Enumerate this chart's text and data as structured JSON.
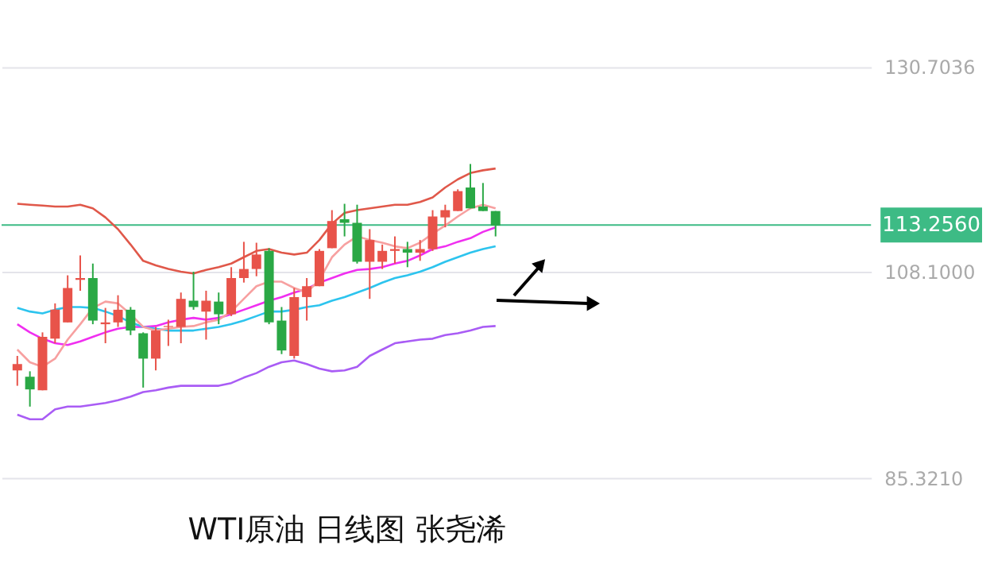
{
  "chart_data": {
    "type": "candlestick",
    "title": "WTI原油 日线图 张尧浠",
    "categories": [
      null,
      null,
      null,
      null,
      null,
      null,
      null,
      null,
      null,
      null,
      null,
      null,
      null,
      null,
      null,
      null,
      null,
      null,
      null,
      null,
      null,
      null,
      null,
      null,
      null,
      null,
      null,
      null,
      null,
      null,
      null,
      null,
      null,
      null,
      null,
      null,
      null,
      null,
      null
    ],
    "ohlc": [
      [
        97.2,
        98.8,
        95.5,
        97.9
      ],
      [
        96.5,
        97.1,
        93.2,
        95.1
      ],
      [
        95.0,
        101.4,
        95.0,
        100.9
      ],
      [
        100.7,
        104.6,
        100.2,
        103.9
      ],
      [
        102.5,
        107.7,
        102.5,
        106.3
      ],
      [
        107.2,
        109.9,
        106.0,
        107.4
      ],
      [
        107.4,
        109.0,
        102.3,
        102.7
      ],
      [
        102.3,
        104.1,
        100.2,
        102.5
      ],
      [
        102.5,
        105.5,
        102.0,
        103.9
      ],
      [
        103.9,
        104.2,
        101.1,
        101.6
      ],
      [
        101.3,
        101.4,
        95.3,
        98.5
      ],
      [
        98.5,
        102.0,
        97.2,
        101.6
      ],
      [
        102.0,
        102.8,
        99.9,
        102.1
      ],
      [
        102.0,
        105.8,
        100.2,
        105.1
      ],
      [
        104.9,
        108.1,
        103.9,
        104.2
      ],
      [
        103.7,
        106.0,
        100.6,
        104.9
      ],
      [
        104.8,
        105.8,
        102.3,
        103.4
      ],
      [
        103.4,
        108.6,
        103.2,
        107.4
      ],
      [
        107.4,
        111.4,
        106.9,
        108.4
      ],
      [
        108.4,
        111.3,
        107.6,
        110.0
      ],
      [
        110.4,
        110.7,
        102.3,
        102.5
      ],
      [
        102.7,
        104.2,
        99.0,
        99.4
      ],
      [
        98.8,
        106.3,
        98.5,
        105.3
      ],
      [
        105.3,
        107.4,
        102.7,
        106.5
      ],
      [
        106.5,
        110.6,
        106.5,
        110.4
      ],
      [
        110.7,
        114.9,
        110.7,
        113.7
      ],
      [
        113.9,
        115.6,
        112.0,
        113.5
      ],
      [
        113.5,
        115.5,
        109.0,
        109.2
      ],
      [
        109.2,
        112.8,
        105.1,
        111.6
      ],
      [
        109.2,
        111.1,
        108.4,
        110.4
      ],
      [
        110.4,
        112.0,
        109.0,
        110.6
      ],
      [
        110.6,
        111.4,
        108.6,
        110.2
      ],
      [
        110.2,
        111.6,
        109.3,
        110.6
      ],
      [
        110.6,
        114.9,
        110.4,
        114.2
      ],
      [
        114.1,
        115.5,
        113.0,
        114.9
      ],
      [
        114.8,
        117.2,
        114.8,
        117.0
      ],
      [
        117.4,
        120.0,
        115.1,
        115.1
      ],
      [
        115.3,
        117.9,
        114.8,
        114.8
      ],
      [
        114.8,
        114.8,
        112.0,
        113.2
      ]
    ],
    "colors": [
      "#e8534a",
      "#2aa845",
      "#e8534a",
      "#e8534a",
      "#e8534a",
      "#e8534a",
      "#2aa845",
      "#e8534a",
      "#e8534a",
      "#2aa845",
      "#2aa845",
      "#e8534a",
      "#e8534a",
      "#e8534a",
      "#2aa845",
      "#e8534a",
      "#2aa845",
      "#e8534a",
      "#e8534a",
      "#e8534a",
      "#2aa845",
      "#2aa845",
      "#e8534a",
      "#e8534a",
      "#e8534a",
      "#e8534a",
      "#2aa845",
      "#2aa845",
      "#e8534a",
      "#e8534a",
      "#e8534a",
      "#2aa845",
      "#e8534a",
      "#e8534a",
      "#e8534a",
      "#e8534a",
      "#2aa845",
      "#2aa845",
      "#2aa845"
    ],
    "series": [
      {
        "type": "line",
        "color": "#e0584a",
        "values": [
          115.6,
          115.5,
          115.4,
          115.3,
          115.3,
          115.5,
          115.1,
          114.1,
          112.8,
          111.1,
          109.3,
          108.8,
          108.4,
          108.1,
          107.9,
          108.3,
          108.6,
          109.0,
          109.7,
          110.4,
          110.6,
          110.2,
          110.0,
          110.2,
          111.6,
          113.4,
          114.6,
          114.9,
          115.1,
          115.3,
          115.5,
          115.5,
          115.8,
          116.3,
          117.4,
          118.3,
          119.0,
          119.3,
          119.5
        ]
      },
      {
        "type": "line",
        "color": "#f02ff0",
        "values": [
          102.3,
          101.4,
          100.7,
          100.2,
          100.0,
          100.4,
          100.9,
          101.4,
          101.8,
          102.0,
          102.0,
          102.1,
          102.5,
          102.8,
          103.0,
          102.8,
          103.0,
          103.4,
          103.9,
          104.4,
          104.9,
          105.3,
          105.8,
          106.2,
          106.9,
          107.4,
          107.9,
          108.3,
          108.4,
          108.6,
          109.0,
          109.3,
          109.9,
          110.6,
          110.9,
          111.4,
          111.8,
          112.5,
          113.0
        ]
      },
      {
        "type": "line",
        "color": "#a95cf5",
        "values": [
          92.3,
          91.8,
          91.8,
          92.9,
          93.2,
          93.2,
          93.4,
          93.6,
          93.9,
          94.3,
          94.8,
          95.0,
          95.3,
          95.5,
          95.5,
          95.5,
          95.5,
          95.8,
          96.4,
          96.9,
          97.6,
          98.1,
          98.3,
          97.9,
          97.4,
          97.1,
          97.2,
          97.6,
          98.8,
          99.5,
          100.2,
          100.4,
          100.6,
          100.7,
          101.1,
          101.3,
          101.6,
          102.0,
          102.1
        ]
      },
      {
        "type": "line",
        "color": "#2dc4ee",
        "values": [
          104.1,
          103.7,
          103.5,
          103.9,
          104.2,
          104.2,
          104.1,
          103.7,
          103.2,
          102.5,
          102.0,
          101.8,
          101.6,
          101.6,
          101.6,
          101.8,
          102.0,
          102.3,
          102.7,
          103.2,
          103.7,
          103.7,
          103.9,
          104.2,
          104.4,
          104.9,
          105.3,
          105.8,
          106.3,
          106.9,
          107.4,
          107.7,
          108.1,
          108.6,
          109.2,
          109.7,
          110.2,
          110.6,
          110.9
        ]
      },
      {
        "type": "line",
        "color": "#f7a0a0",
        "values": [
          99.5,
          98.1,
          97.6,
          98.5,
          100.6,
          102.3,
          104.1,
          104.8,
          104.6,
          103.4,
          102.0,
          101.6,
          101.8,
          102.0,
          102.1,
          102.5,
          102.8,
          103.7,
          105.1,
          106.5,
          107.0,
          107.0,
          106.3,
          105.8,
          107.2,
          109.7,
          111.1,
          112.0,
          111.6,
          111.3,
          110.9,
          110.7,
          111.3,
          112.3,
          113.2,
          114.2,
          115.1,
          115.5,
          115.1
        ]
      }
    ],
    "ylim": [
      85.321,
      130.7036
    ],
    "yticks": [
      130.7036,
      {
        "value": 108.1,
        "label": "108.1000"
      },
      {
        "value": 85.321,
        "label": "85.3210"
      }
    ],
    "ref_lines": [
      {
        "axis": "y",
        "value": 113.256,
        "label": "113.2560",
        "color": "#3dbb85"
      }
    ],
    "grid": "y",
    "tick_labels": "y"
  }
}
